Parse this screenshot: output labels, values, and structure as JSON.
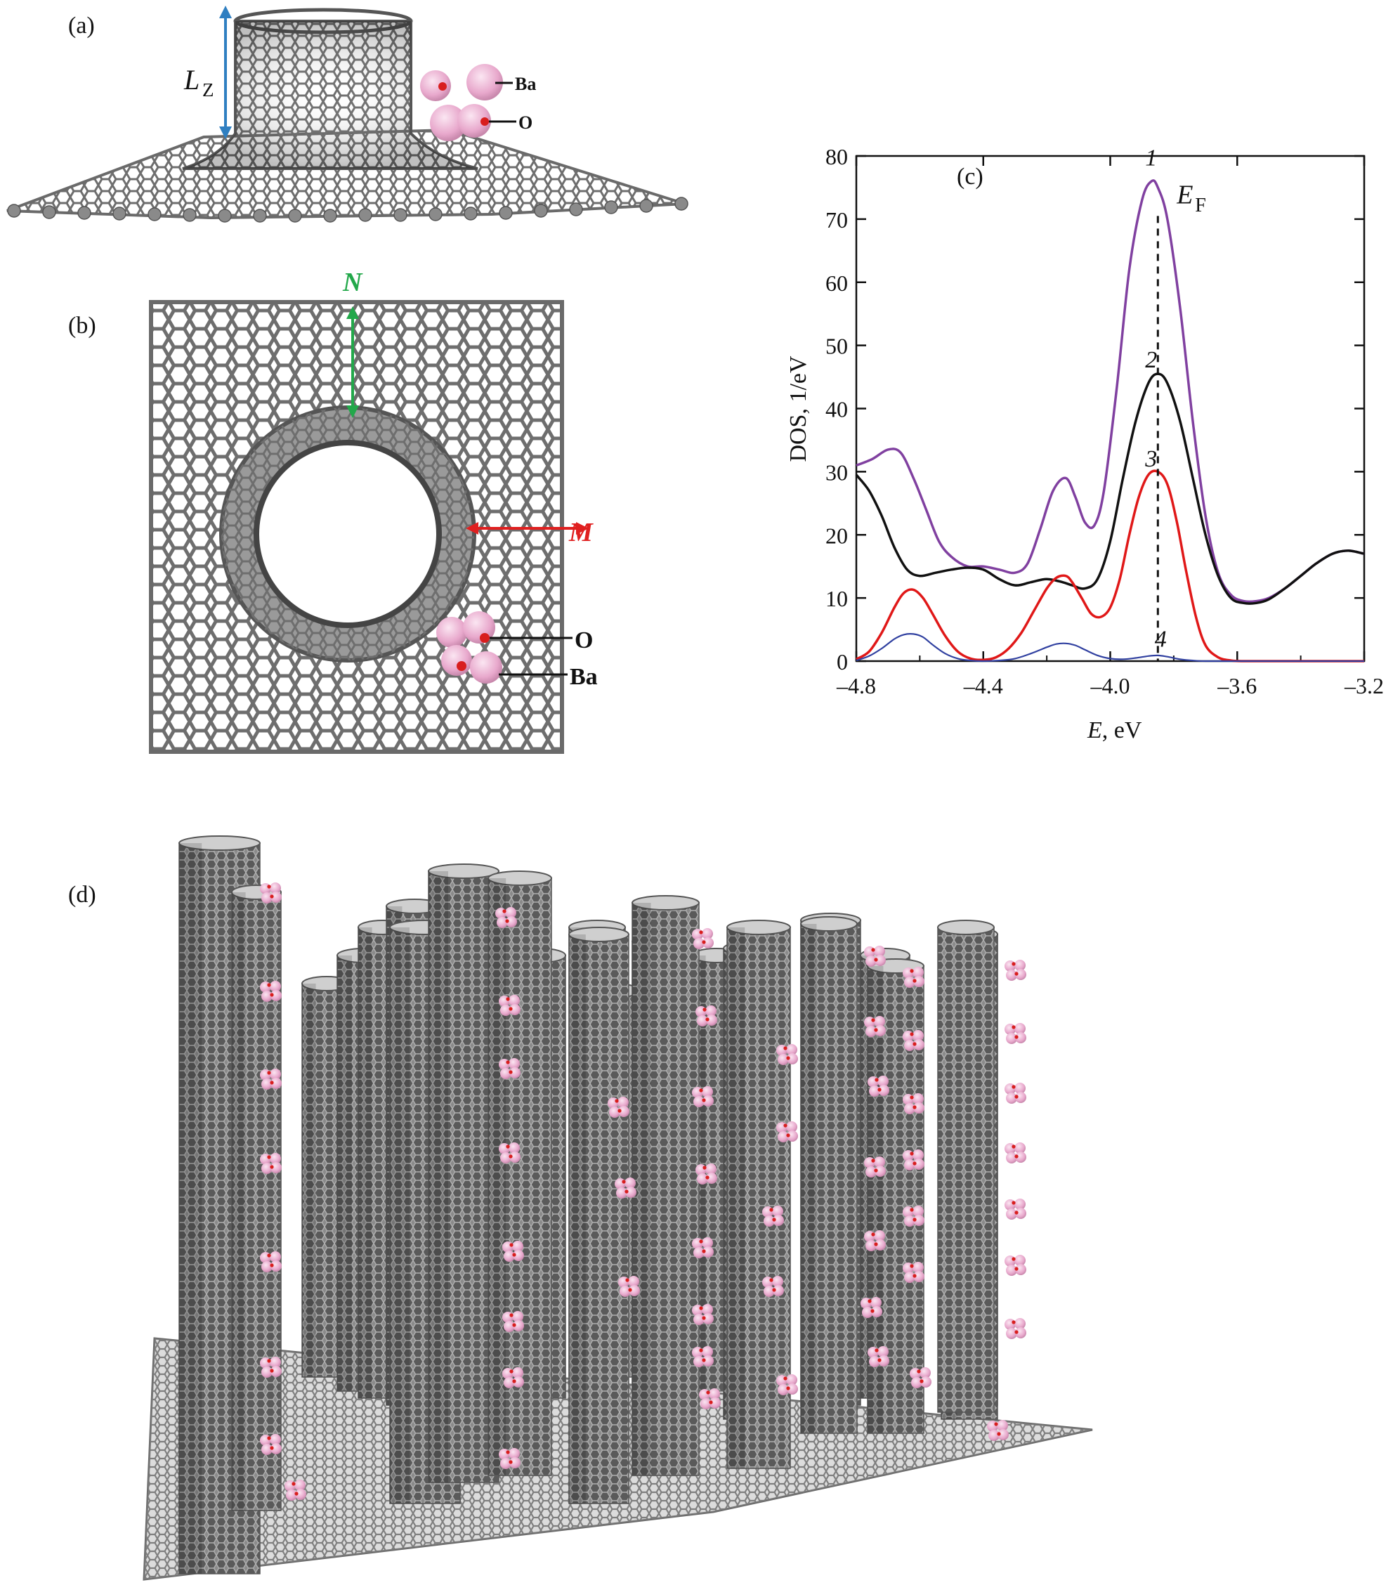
{
  "panels": {
    "a": {
      "label": "(a)",
      "lz_main": "L",
      "lz_sub": "Z",
      "ba_label": "Ba",
      "o_label": "O"
    },
    "b": {
      "label": "(b)",
      "n_label": "N",
      "m_label": "M",
      "o_label": "O",
      "ba_label": "Ba"
    },
    "c": {
      "label": "(c)"
    },
    "d": {
      "label": "(d)"
    }
  },
  "colors": {
    "carbon": "#7a7a7a",
    "ba_atom": "#e8a8cc",
    "o_atom": "#d81e1e",
    "arrow_blue": "#2f7fc1",
    "arrow_green": "#22a84a",
    "arrow_red": "#e02020",
    "curve1": "#8040a0",
    "curve2": "#111111",
    "curve3": "#e01818",
    "curve4": "#3040a0"
  },
  "chart_data": {
    "type": "line",
    "title": "",
    "xlabel_italic": "E",
    "xlabel_rest": ", eV",
    "ylabel": "DOS, 1/eV",
    "xlim": [
      -4.8,
      -3.2
    ],
    "ylim": [
      0,
      80
    ],
    "x_ticks": [
      -4.8,
      -4.4,
      -4.0,
      -3.6,
      -3.2
    ],
    "x_tick_labels": [
      "–4.8",
      "–4.4",
      "–4.0",
      "–3.6",
      "–3.2"
    ],
    "y_ticks": [
      0,
      10,
      20,
      30,
      40,
      50,
      60,
      70,
      80
    ],
    "y_tick_labels": [
      "0",
      "10",
      "20",
      "30",
      "40",
      "50",
      "60",
      "70",
      "80"
    ],
    "fermi_level": {
      "x": -3.85,
      "label_main": "E",
      "label_sub": "F"
    },
    "series": [
      {
        "name": "1",
        "color": "#8040a0",
        "x": [
          -4.8,
          -4.75,
          -4.7,
          -4.66,
          -4.62,
          -4.58,
          -4.54,
          -4.5,
          -4.45,
          -4.4,
          -4.35,
          -4.3,
          -4.26,
          -4.22,
          -4.18,
          -4.14,
          -4.11,
          -4.08,
          -4.05,
          -4.02,
          -3.98,
          -3.94,
          -3.9,
          -3.87,
          -3.85,
          -3.82,
          -3.78,
          -3.74,
          -3.7,
          -3.66,
          -3.62,
          -3.58,
          -3.54,
          -3.5,
          -3.45,
          -3.4,
          -3.35,
          -3.3,
          -3.25,
          -3.2
        ],
        "y": [
          31,
          32,
          33.5,
          33,
          29,
          24,
          19,
          16.5,
          15,
          15,
          14.5,
          14,
          15.5,
          21,
          27,
          29,
          26,
          22,
          21.5,
          27,
          43,
          62,
          73,
          76,
          75,
          70,
          56,
          38,
          23,
          14,
          10.5,
          9.5,
          9.5,
          10,
          11.5,
          13.5,
          15.5,
          17,
          17.5,
          17
        ]
      },
      {
        "name": "2",
        "color": "#111111",
        "x": [
          -4.8,
          -4.76,
          -4.72,
          -4.68,
          -4.64,
          -4.6,
          -4.55,
          -4.5,
          -4.45,
          -4.4,
          -4.35,
          -4.3,
          -4.25,
          -4.2,
          -4.15,
          -4.12,
          -4.08,
          -4.04,
          -4.0,
          -3.96,
          -3.92,
          -3.88,
          -3.85,
          -3.82,
          -3.78,
          -3.74,
          -3.7,
          -3.66,
          -3.62,
          -3.58,
          -3.54,
          -3.5,
          -3.45,
          -3.4,
          -3.35,
          -3.3,
          -3.25,
          -3.2
        ],
        "y": [
          29.5,
          27,
          23,
          18,
          14.5,
          13.5,
          14,
          14.5,
          14.8,
          14.5,
          13,
          12,
          12.5,
          13,
          12.5,
          12,
          11.5,
          13,
          19,
          29,
          38,
          44,
          45.5,
          44,
          38,
          29,
          20,
          13.5,
          10,
          9.2,
          9.2,
          9.8,
          11.5,
          13.5,
          15.5,
          17,
          17.5,
          17
        ]
      },
      {
        "name": "3",
        "color": "#e01818",
        "x": [
          -4.8,
          -4.76,
          -4.72,
          -4.68,
          -4.65,
          -4.62,
          -4.59,
          -4.56,
          -4.52,
          -4.48,
          -4.44,
          -4.4,
          -4.36,
          -4.32,
          -4.28,
          -4.24,
          -4.2,
          -4.17,
          -4.14,
          -4.12,
          -4.09,
          -4.06,
          -4.03,
          -4.0,
          -3.97,
          -3.94,
          -3.91,
          -3.88,
          -3.85,
          -3.82,
          -3.79,
          -3.76,
          -3.73,
          -3.7,
          -3.66,
          -3.62,
          -3.58,
          -3.5,
          -3.4,
          -3.3,
          -3.2
        ],
        "y": [
          0.3,
          1.5,
          4.5,
          8.5,
          10.8,
          11.3,
          10,
          7.5,
          4,
          1.5,
          0.4,
          0.2,
          0.6,
          2,
          4.5,
          8,
          11.5,
          13.2,
          13.5,
          12.5,
          10,
          7.5,
          7,
          8.5,
          13,
          20,
          26,
          29.5,
          30,
          28,
          22,
          14,
          7,
          2.5,
          0.6,
          0.1,
          0,
          0,
          0,
          0,
          0
        ]
      },
      {
        "name": "4",
        "color": "#3040a0",
        "x": [
          -4.8,
          -4.76,
          -4.72,
          -4.68,
          -4.65,
          -4.62,
          -4.59,
          -4.56,
          -4.52,
          -4.48,
          -4.44,
          -4.4,
          -4.35,
          -4.3,
          -4.25,
          -4.2,
          -4.17,
          -4.14,
          -4.11,
          -4.08,
          -4.04,
          -4.0,
          -3.96,
          -3.92,
          -3.88,
          -3.85,
          -3.82,
          -3.78,
          -3.74,
          -3.7,
          -3.6,
          -3.5,
          -3.4,
          -3.3,
          -3.2
        ],
        "y": [
          0.1,
          0.8,
          2,
          3.5,
          4.2,
          4.3,
          3.8,
          2.6,
          1.2,
          0.4,
          0.1,
          0,
          0.1,
          0.4,
          1.2,
          2.2,
          2.7,
          2.8,
          2.5,
          1.8,
          0.9,
          0.4,
          0.3,
          0.5,
          0.8,
          0.9,
          0.7,
          0.3,
          0.1,
          0,
          0,
          0,
          0,
          0,
          0
        ]
      }
    ]
  }
}
